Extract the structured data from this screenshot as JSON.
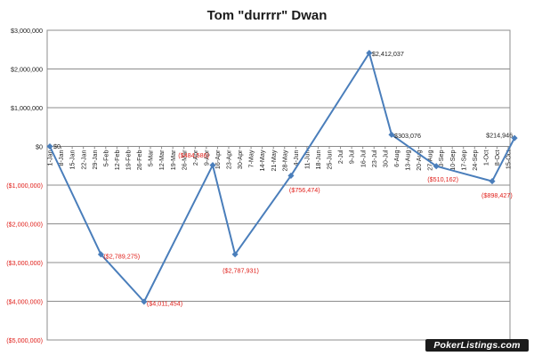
{
  "chart_data": {
    "type": "line",
    "title": "Tom \"durrrr\" Dwan",
    "xlabel": "",
    "ylabel": "",
    "ylim": [
      -5000000,
      3000000
    ],
    "y_ticks": [
      {
        "value": 3000000,
        "label": "$3,000,000"
      },
      {
        "value": 2000000,
        "label": "$2,000,000"
      },
      {
        "value": 1000000,
        "label": "$1,000,000"
      },
      {
        "value": 0,
        "label": "$0"
      },
      {
        "value": -1000000,
        "label": "($1,000,000)"
      },
      {
        "value": -2000000,
        "label": "($2,000,000)"
      },
      {
        "value": -3000000,
        "label": "($3,000,000)"
      },
      {
        "value": -4000000,
        "label": "($4,000,000)"
      },
      {
        "value": -5000000,
        "label": "($5,000,000)"
      }
    ],
    "x_ticks": [
      "1-Jan",
      "8-Jan",
      "15-Jan",
      "22-Jan",
      "29-Jan",
      "5-Feb",
      "12-Feb",
      "19-Feb",
      "26-Feb",
      "5-Mar",
      "12-Mar",
      "19-Mar",
      "26-Mar",
      "2-Apr",
      "9-Apr",
      "16-Apr",
      "23-Apr",
      "30-Apr",
      "7-May",
      "14-May",
      "21-May",
      "28-May",
      "4-Jun",
      "11-Jun",
      "18-Jun",
      "25-Jun",
      "2-Jul",
      "9-Jul",
      "16-Jul",
      "23-Jul",
      "30-Jul",
      "6-Aug",
      "13-Aug",
      "20-Aug",
      "27-Aug",
      "3-Sep",
      "10-Sep",
      "17-Sep",
      "24-Sep",
      "1-Oct",
      "8-Oct",
      "15-Oct"
    ],
    "grid": true,
    "series": [
      {
        "points": [
          {
            "x": "1-Jan",
            "y": 0,
            "label": "$0"
          },
          {
            "x": "2-Feb",
            "y": -2789275,
            "label": "($2,789,275)"
          },
          {
            "x": "1-Mar",
            "y": -4011454,
            "label": "($4,011,454)"
          },
          {
            "x": "13-Apr",
            "y": -484586,
            "label": "($484,586)"
          },
          {
            "x": "27-Apr",
            "y": -2787931,
            "label": "($2,787,931)"
          },
          {
            "x": "1-Jun",
            "y": -756474,
            "label": "($756,474)"
          },
          {
            "x": "20-Jul",
            "y": 2412037,
            "label": "$2,412,037"
          },
          {
            "x": "3-Aug",
            "y": 303076,
            "label": "$303,076"
          },
          {
            "x": "31-Aug",
            "y": -510162,
            "label": "($510,162)"
          },
          {
            "x": "5-Oct",
            "y": -898427,
            "label": "($898,427)"
          },
          {
            "x": "19-Oct",
            "y": 214946,
            "label": "$214,946"
          }
        ]
      }
    ]
  },
  "watermark": "PokerListings.com",
  "colors": {
    "line": "#4a7ebb",
    "negative_label": "#e0201b",
    "positive_label": "#222222",
    "grid": "#8c8c8c"
  }
}
